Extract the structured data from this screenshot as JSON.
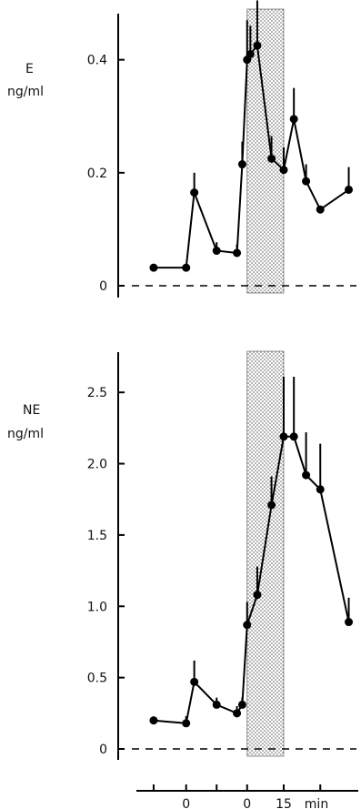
{
  "chart_data": [
    {
      "type": "line",
      "ylabel_abbr": "E",
      "ylabel_unit": "ng/ml",
      "yticks": [
        {
          "value": 0,
          "label": "0"
        },
        {
          "value": 0.2,
          "label": "0.2"
        },
        {
          "value": 0.4,
          "label": "0.4"
        }
      ],
      "ylim": [
        0,
        0.48
      ],
      "xlim": [
        -25,
        26
      ],
      "baseline": 0,
      "shaded_interval": [
        0,
        9
      ],
      "points": [
        {
          "x": -23,
          "y": 0.032,
          "err": 0
        },
        {
          "x": -15,
          "y": 0.032,
          "err": 0
        },
        {
          "x": -13,
          "y": 0.165,
          "err": 0.035
        },
        {
          "x": -7.5,
          "y": 0.062,
          "err": 0.015
        },
        {
          "x": -2.5,
          "y": 0.058,
          "err": 0.015
        },
        {
          "x": -1.2,
          "y": 0.215,
          "err": 0.04
        },
        {
          "x": 0,
          "y": 0.4,
          "err": 0.07
        },
        {
          "x": 0.8,
          "y": 0.41,
          "err": 0.05
        },
        {
          "x": 2.5,
          "y": 0.425,
          "err": 0.08
        },
        {
          "x": 6,
          "y": 0.225,
          "err": 0.04
        },
        {
          "x": 9,
          "y": 0.205,
          "err": 0.04
        },
        {
          "x": 11.5,
          "y": 0.295,
          "err": 0.055
        },
        {
          "x": 14.5,
          "y": 0.185,
          "err": 0.03
        },
        {
          "x": 18,
          "y": 0.135,
          "err": 0
        },
        {
          "x": 25,
          "y": 0.17,
          "err": 0.04
        }
      ]
    },
    {
      "type": "line",
      "ylabel_abbr": "NE",
      "ylabel_unit": "ng/ml",
      "yticks": [
        {
          "value": 0,
          "label": "0"
        },
        {
          "value": 0.5,
          "label": "0.5"
        },
        {
          "value": 1.0,
          "label": "1.0"
        },
        {
          "value": 1.5,
          "label": "1.5"
        },
        {
          "value": 2.0,
          "label": "2.0"
        },
        {
          "value": 2.5,
          "label": "2.5"
        }
      ],
      "ylim": [
        0,
        2.75
      ],
      "xlim": [
        -25,
        26
      ],
      "baseline": 0,
      "shaded_interval": [
        0,
        9
      ],
      "points": [
        {
          "x": -23,
          "y": 0.2,
          "err": 0
        },
        {
          "x": -15,
          "y": 0.18,
          "err": 0.05
        },
        {
          "x": -13,
          "y": 0.47,
          "err": 0.15
        },
        {
          "x": -7.5,
          "y": 0.31,
          "err": 0.05
        },
        {
          "x": -2.5,
          "y": 0.25,
          "err": 0.05
        },
        {
          "x": -1.2,
          "y": 0.31,
          "err": 0.05
        },
        {
          "x": 0,
          "y": 0.87,
          "err": 0.16
        },
        {
          "x": 2.5,
          "y": 1.08,
          "err": 0.2
        },
        {
          "x": 6,
          "y": 1.71,
          "err": 0.2
        },
        {
          "x": 9,
          "y": 2.19,
          "err": 0.42
        },
        {
          "x": 11.5,
          "y": 2.19,
          "err": 0.42
        },
        {
          "x": 14.5,
          "y": 1.92,
          "err": 0.3
        },
        {
          "x": 18,
          "y": 1.82,
          "err": 0.32
        },
        {
          "x": 25,
          "y": 0.89,
          "err": 0.17
        }
      ]
    }
  ],
  "x_axis": {
    "ticks": [
      {
        "value": -23,
        "label": ""
      },
      {
        "value": -15,
        "label": "0"
      },
      {
        "value": -7.5,
        "label": ""
      },
      {
        "value": 0,
        "label": "0"
      },
      {
        "value": 9,
        "label": "15"
      },
      {
        "value": 18,
        "label": ""
      }
    ],
    "unit_label": "min"
  }
}
